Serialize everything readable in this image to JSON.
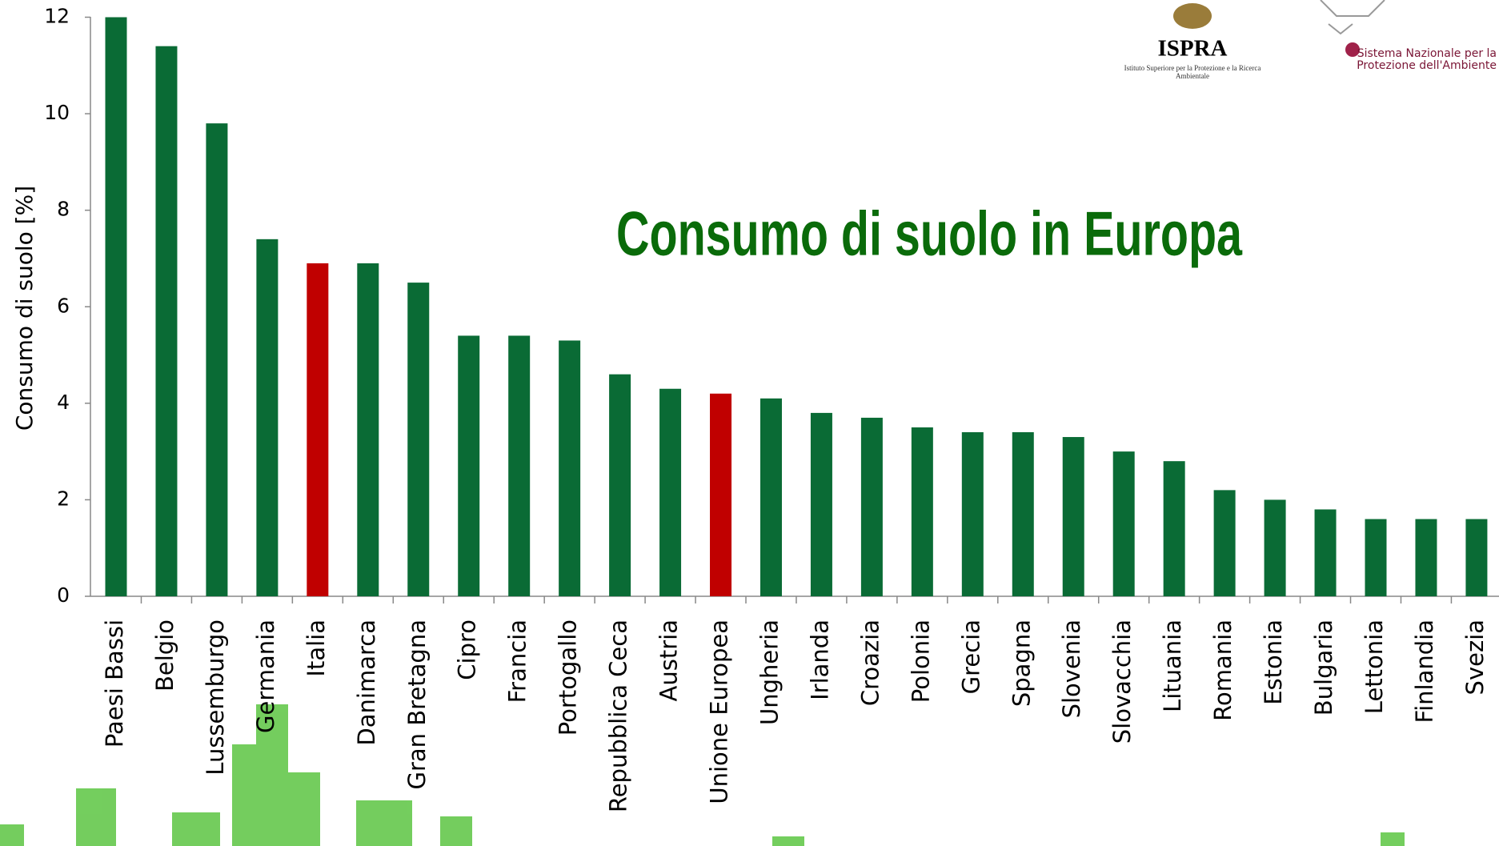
{
  "chart_data": {
    "type": "bar",
    "title": "Consumo di suolo in Europa",
    "y_label": "Consumo di suolo [%]",
    "categories": [
      "Paesi Bassi",
      "Belgio",
      "Lussemburgo",
      "Germania",
      "Italia",
      "Danimarca",
      "Gran Bretagna",
      "Cipro",
      "Francia",
      "Portogallo",
      "Repubblica Ceca",
      "Austria",
      "Unione Europea",
      "Ungheria",
      "Irlanda",
      "Croazia",
      "Polonia",
      "Grecia",
      "Spagna",
      "Slovenia",
      "Slovacchia",
      "Lituania",
      "Romania",
      "Estonia",
      "Bulgaria",
      "Lettonia",
      "Finlandia",
      "Svezia"
    ],
    "values": [
      12,
      11.4,
      9.8,
      7.4,
      6.9,
      6.9,
      6.5,
      5.4,
      5.4,
      5.3,
      4.6,
      4.3,
      4.2,
      4.1,
      3.8,
      3.7,
      3.5,
      3.4,
      3.4,
      3.3,
      3.0,
      2.8,
      2.2,
      2.0,
      1.8,
      1.6,
      1.6,
      1.6
    ],
    "colors": [
      "#0a6b35",
      "#0a6b35",
      "#0a6b35",
      "#0a6b35",
      "#c00000",
      "#0a6b35",
      "#0a6b35",
      "#0a6b35",
      "#0a6b35",
      "#0a6b35",
      "#0a6b35",
      "#0a6b35",
      "#c00000",
      "#0a6b35",
      "#0a6b35",
      "#0a6b35",
      "#0a6b35",
      "#0a6b35",
      "#0a6b35",
      "#0a6b35",
      "#0a6b35",
      "#0a6b35",
      "#0a6b35",
      "#0a6b35",
      "#0a6b35",
      "#0a6b35",
      "#0a6b35",
      "#0a6b35"
    ],
    "ylim": [
      0,
      12
    ],
    "yticks": [
      0,
      2,
      4,
      6,
      8,
      10,
      12
    ],
    "grid": false
  },
  "logos": {
    "ispra": "ISPRA",
    "ispra_caption": "Istituto Superiore per la Protezione e la Ricerca Ambientale",
    "snpa": "Sistema Nazionale per la Protezione dell'Ambiente"
  }
}
